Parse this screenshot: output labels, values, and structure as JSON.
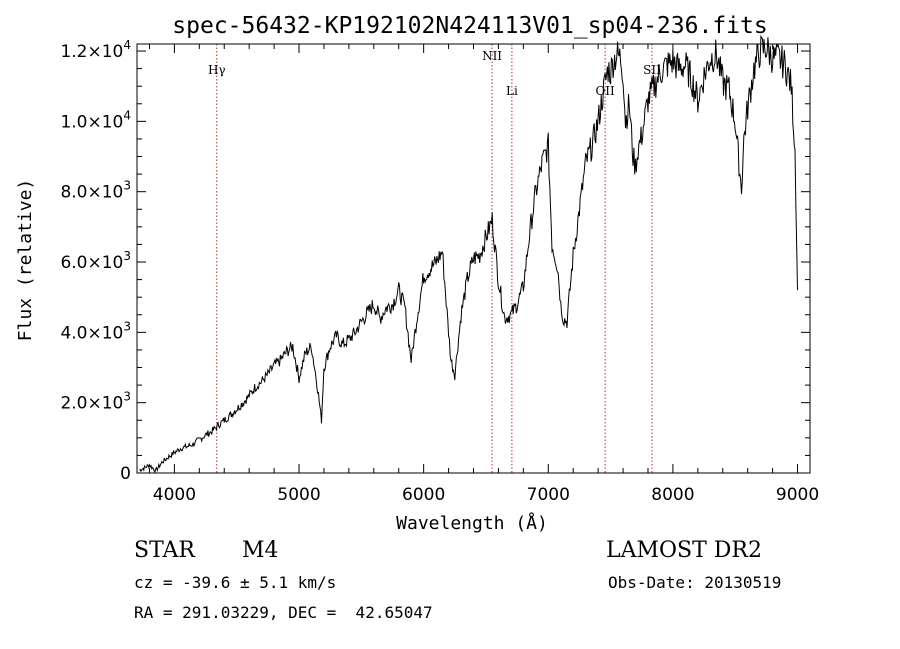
{
  "chart_data": {
    "type": "line",
    "title": "spec-56432-KP192102N424113V01_sp04-236.fits",
    "xlabel": "Wavelength (Å)",
    "ylabel": "Flux (relative)",
    "xlim": [
      3700,
      9100
    ],
    "ylim": [
      0,
      12200
    ],
    "x_ticks": [
      4000,
      5000,
      6000,
      7000,
      8000,
      9000
    ],
    "x_tick_labels": [
      "4000",
      "5000",
      "6000",
      "7000",
      "8000",
      "9000"
    ],
    "y_ticks": [
      0,
      2000,
      4000,
      6000,
      8000,
      10000,
      12000
    ],
    "y_tick_labels": [
      {
        "mantissa": "0",
        "exp": ""
      },
      {
        "mantissa": "2.0×10",
        "exp": "3"
      },
      {
        "mantissa": "4.0×10",
        "exp": "3"
      },
      {
        "mantissa": "6.0×10",
        "exp": "3"
      },
      {
        "mantissa": "8.0×10",
        "exp": "3"
      },
      {
        "mantissa": "1.0×10",
        "exp": "4"
      },
      {
        "mantissa": "1.2×10",
        "exp": "4"
      }
    ],
    "grid": false,
    "line_markers": [
      {
        "label": "Hγ",
        "x": 4340,
        "label_y": 11350
      },
      {
        "label": "NII",
        "x": 6549,
        "label_y": 11750
      },
      {
        "label": "Li",
        "x": 6708,
        "label_y": 10750
      },
      {
        "label": "OII",
        "x": 7456,
        "label_y": 10750
      },
      {
        "label": "SII",
        "x": 7832,
        "label_y": 11350
      }
    ],
    "marker_color": "#b03030",
    "series": [
      {
        "x": [
          3720,
          3760,
          3800,
          3850,
          3900,
          3950,
          4000,
          4050,
          4100,
          4150,
          4200,
          4250,
          4300,
          4350,
          4400,
          4450,
          4500,
          4550,
          4600,
          4650,
          4700,
          4750,
          4800,
          4850,
          4900,
          4950,
          5000,
          5050,
          5100,
          5150,
          5180,
          5200,
          5250,
          5300,
          5350,
          5400,
          5450,
          5500,
          5550,
          5600,
          5650,
          5700,
          5750,
          5800,
          5850,
          5900,
          5950,
          6000,
          6050,
          6100,
          6150,
          6200,
          6220,
          6250,
          6300,
          6350,
          6400,
          6450,
          6500,
          6550,
          6600,
          6650,
          6700,
          6750,
          6800,
          6850,
          6900,
          6950,
          7000,
          7030,
          7060,
          7080,
          7100,
          7120,
          7150,
          7200,
          7250,
          7300,
          7350,
          7400,
          7450,
          7480,
          7500,
          7520,
          7550,
          7580,
          7600,
          7620,
          7650,
          7680,
          7700,
          7720,
          7750,
          7800,
          7850,
          7900,
          7950,
          8000,
          8050,
          8100,
          8150,
          8200,
          8250,
          8300,
          8350,
          8400,
          8450,
          8500,
          8530,
          8550,
          8570,
          8600,
          8650,
          8700,
          8750,
          8800,
          8850,
          8900,
          8950,
          8980,
          9000
        ],
        "y": [
          80,
          150,
          230,
          60,
          300,
          450,
          580,
          700,
          750,
          820,
          950,
          1080,
          1180,
          1350,
          1500,
          1650,
          1820,
          2000,
          2200,
          2450,
          2600,
          2800,
          3050,
          3200,
          3450,
          3600,
          2700,
          3400,
          3600,
          2400,
          1500,
          3000,
          3600,
          3900,
          3650,
          3800,
          4000,
          4300,
          4550,
          4800,
          4400,
          4700,
          4800,
          5200,
          4700,
          3200,
          4500,
          5600,
          5800,
          6000,
          6300,
          4000,
          3200,
          2800,
          4500,
          5500,
          6100,
          6200,
          6700,
          7200,
          5500,
          4400,
          4500,
          4800,
          5300,
          6800,
          8000,
          8800,
          9300,
          6500,
          6100,
          5700,
          4800,
          4400,
          4300,
          6200,
          7500,
          8800,
          9300,
          10000,
          11000,
          11500,
          11400,
          11700,
          11900,
          11800,
          11400,
          10000,
          10500,
          9000,
          8700,
          9200,
          9600,
          10600,
          11000,
          11400,
          11600,
          11700,
          11500,
          11600,
          11200,
          10600,
          11300,
          11800,
          11900,
          11100,
          10900,
          10000,
          8800,
          8100,
          9500,
          10400,
          11500,
          12000,
          12100,
          11800,
          11800,
          11600,
          11000,
          9200,
          5200
        ]
      }
    ]
  },
  "footer": {
    "object_type": "STAR",
    "subclass": "M4",
    "survey": "LAMOST DR2",
    "cz": "cz = -39.6 ± 5.1 km/s",
    "coords": "RA = 291.03229, DEC =  42.65047",
    "obs_date": "Obs-Date: 20130519"
  }
}
